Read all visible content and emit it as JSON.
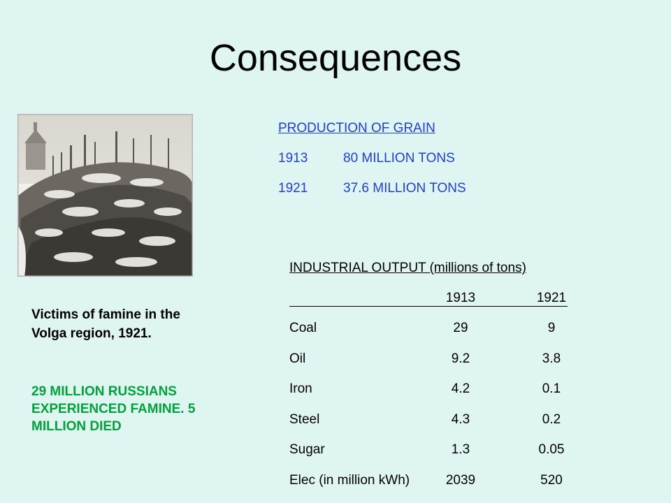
{
  "slide": {
    "title": "Consequences"
  },
  "photo": {
    "caption": "Victims of famine in the Volga region, 1921."
  },
  "famine_note": "29 MILLION RUSSIANS EXPERIENCED FAMINE. 5 MILLION DIED",
  "grain": {
    "heading": "PRODUCTION OF GRAIN",
    "rows": [
      {
        "year": "1913",
        "amount": "80 MILLION TONS"
      },
      {
        "year": "1921",
        "amount": "37.6 MILLION TONS"
      }
    ]
  },
  "industrial": {
    "heading": "INDUSTRIAL OUTPUT (millions of tons)",
    "columns": [
      "1913",
      "1921"
    ],
    "rows": [
      {
        "name": "Coal",
        "y1913": "29",
        "y1921": "9"
      },
      {
        "name": "Oil",
        "y1913": "9.2",
        "y1921": "3.8"
      },
      {
        "name": "Iron",
        "y1913": "4.2",
        "y1921": "0.1"
      },
      {
        "name": "Steel",
        "y1913": "4.3",
        "y1921": "0.2"
      },
      {
        "name": "Sugar",
        "y1913": "1.3",
        "y1921": "0.05"
      },
      {
        "name": "Elec (in million kWh)",
        "y1913": "2039",
        "y1921": "520"
      }
    ]
  },
  "colors": {
    "background": "#dff5f1",
    "grain_text": "#1f3fd8",
    "famine_note_text": "#00a23a"
  }
}
